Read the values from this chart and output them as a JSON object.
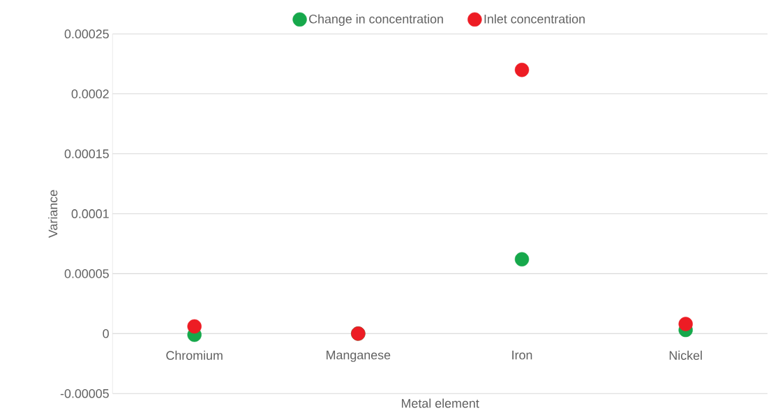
{
  "chart_data": {
    "type": "scatter",
    "xlabel": "Metal element",
    "ylabel": "Variance",
    "categories": [
      "Chromium",
      "Manganese",
      "Iron",
      "Nickel"
    ],
    "series": [
      {
        "name": "Change in concentration",
        "color": "#16a84b",
        "values": [
          -1e-06,
          0,
          6.2e-05,
          3e-06
        ]
      },
      {
        "name": "Inlet concentration",
        "color": "#ed1c24",
        "values": [
          6e-06,
          0,
          0.00022,
          8e-06
        ]
      }
    ],
    "ylim": [
      -5e-05,
      0.00025
    ],
    "yticks": [
      {
        "value": -5e-05,
        "label": "-0.00005"
      },
      0,
      {
        "value": 5e-05,
        "label": "0.00005"
      },
      0.0001,
      0.00015,
      0.0002,
      0.00025
    ],
    "grid": "y",
    "legend": "top"
  }
}
